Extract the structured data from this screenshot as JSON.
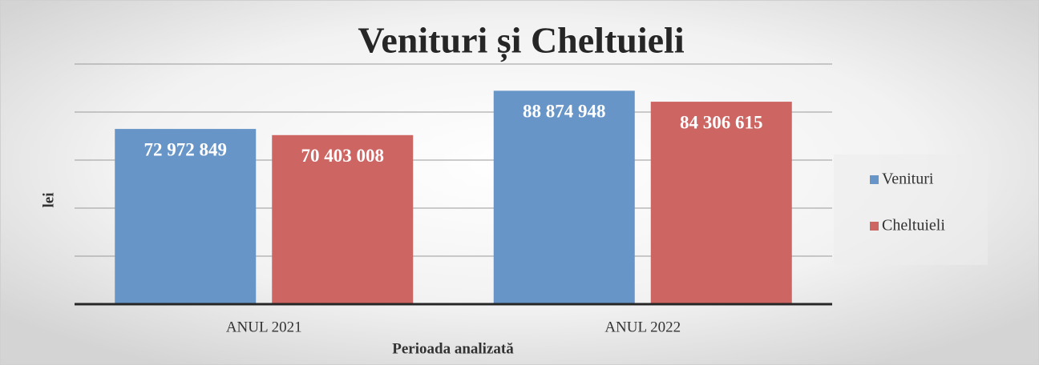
{
  "chart_data": {
    "type": "bar",
    "title": "Venituri și Cheltuieli",
    "x_label": "Perioada analizată",
    "y_label": "lei",
    "categories": [
      "ANUL 2021",
      "ANUL 2022"
    ],
    "series": [
      {
        "name": "Venituri",
        "color": "#6895c8",
        "values": [
          72972849,
          88874948
        ],
        "value_labels": [
          "72 972 849",
          "88 874 948"
        ]
      },
      {
        "name": "Cheltuieli",
        "color": "#cd6563",
        "values": [
          70403008,
          84306615
        ],
        "value_labels": [
          "70 403 008",
          "84 306 615"
        ]
      }
    ],
    "ylim": [
      0,
      100000000
    ],
    "yticks": [
      0,
      20000000,
      40000000,
      60000000,
      80000000,
      100000000
    ],
    "grid": true,
    "legend": "right"
  }
}
